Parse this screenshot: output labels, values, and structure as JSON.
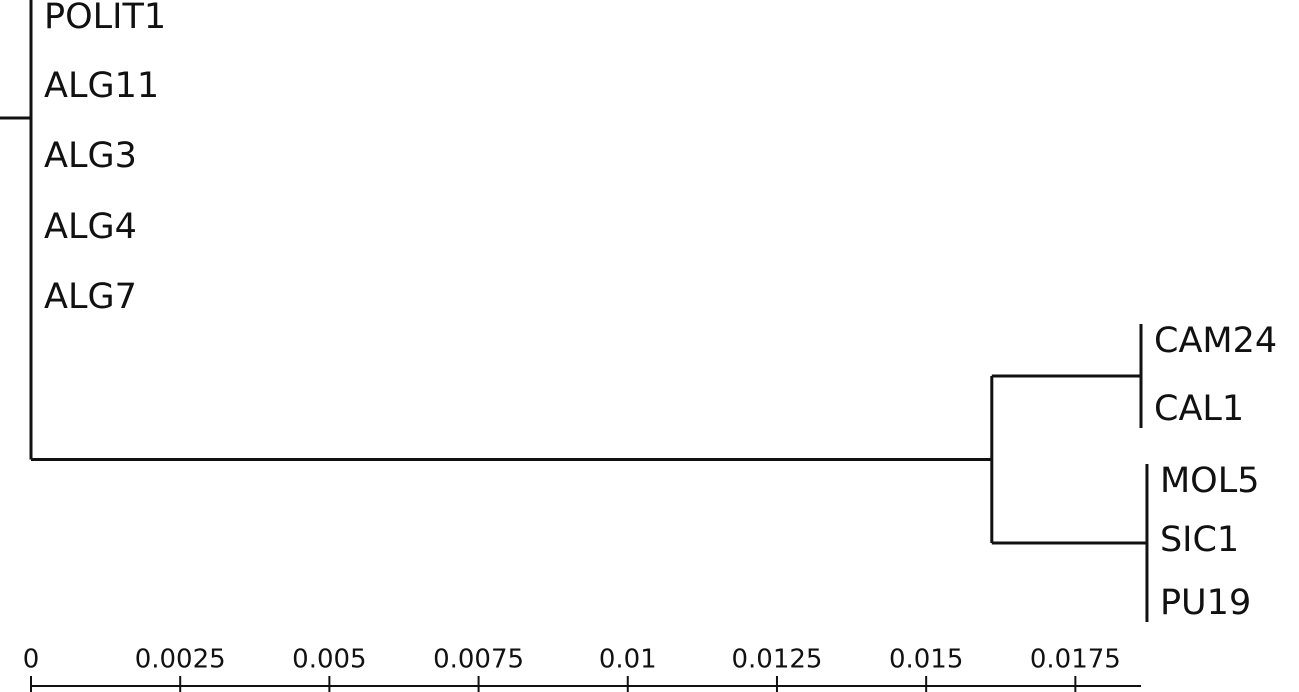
{
  "chart_data": {
    "type": "dendrogram",
    "xlim": [
      0,
      0.0186
    ],
    "xticks": [
      0,
      0.0025,
      0.005,
      0.0075,
      0.01,
      0.0125,
      0.015,
      0.0175
    ],
    "tree": {
      "x": 0,
      "children": [
        {
          "label": "POLIT1"
        },
        {
          "label": "ALG11"
        },
        {
          "label": "ALG3"
        },
        {
          "label": "ALG4"
        },
        {
          "label": "ALG7"
        },
        {
          "x": 0.0161,
          "children": [
            {
              "x": 0.0186,
              "children": [
                {
                  "label": "CAM24"
                },
                {
                  "label": "CAL1"
                }
              ]
            },
            {
              "x": 0.0187,
              "children": [
                {
                  "label": "MOL5"
                },
                {
                  "label": "SIC1"
                },
                {
                  "label": "PU19"
                }
              ]
            }
          ]
        }
      ]
    }
  }
}
